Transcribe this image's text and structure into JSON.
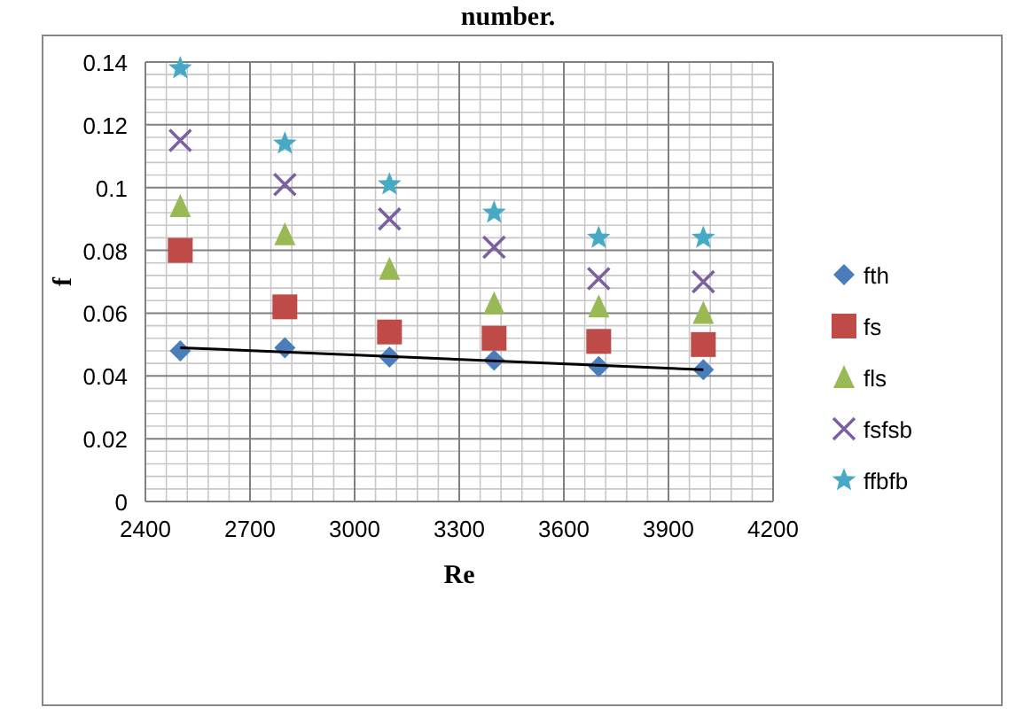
{
  "chart_data": {
    "type": "scatter",
    "title": "number.",
    "xlabel": "Re",
    "ylabel": "f",
    "xlim": [
      2400,
      4200
    ],
    "xticks": [
      2400,
      2700,
      3000,
      3300,
      3600,
      3900,
      4200
    ],
    "ylim": [
      0,
      0.14
    ],
    "yticks": [
      0,
      0.02,
      0.04,
      0.06,
      0.08,
      {
        "value": 0.1,
        "label": "0.1"
      },
      0.12,
      0.14
    ],
    "grid": true,
    "legend": "right",
    "series": [
      {
        "name": "fth",
        "color": "#4a7ebb",
        "marker": "diamond",
        "x": [
          2500,
          2800,
          3100,
          3400,
          3700,
          4000
        ],
        "values": [
          0.048,
          0.049,
          0.046,
          0.045,
          0.043,
          0.042
        ]
      },
      {
        "name": "fs",
        "color": "#be4b48",
        "marker": "square",
        "x": [
          2500,
          2800,
          3100,
          3400,
          3700,
          4000
        ],
        "values": [
          0.08,
          0.062,
          0.054,
          0.052,
          0.051,
          0.05
        ]
      },
      {
        "name": "fls",
        "color": "#98b954",
        "marker": "triangle",
        "x": [
          2500,
          2800,
          3100,
          3400,
          3700,
          4000
        ],
        "values": [
          0.094,
          0.085,
          0.074,
          0.063,
          0.062,
          0.06
        ]
      },
      {
        "name": "fsfsb",
        "color": "#7d60a0",
        "marker": "cross",
        "x": [
          2500,
          2800,
          3100,
          3400,
          3700,
          4000
        ],
        "values": [
          0.115,
          0.101,
          0.09,
          0.081,
          0.071,
          0.07
        ]
      },
      {
        "name": "ffbfb",
        "color": "#46aac5",
        "marker": "star",
        "x": [
          2500,
          2800,
          3100,
          3400,
          3700,
          4000
        ],
        "values": [
          0.138,
          0.114,
          0.101,
          0.092,
          0.084,
          0.084
        ]
      },
      {
        "type": "line",
        "color": "#000000",
        "marker": "none",
        "line_style": "solid",
        "x": [
          2500,
          4000
        ],
        "values": [
          0.049,
          0.042
        ]
      }
    ]
  }
}
